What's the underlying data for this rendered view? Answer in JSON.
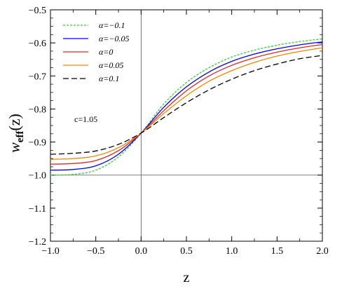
{
  "chart_data": {
    "type": "line",
    "title": "",
    "xlabel": "z",
    "ylabel_main": "w",
    "ylabel_sub": "eff",
    "ylabel_arg": "(z)",
    "xlim": [
      -1.0,
      2.0
    ],
    "ylim": [
      -1.2,
      -0.5
    ],
    "x_ticks": [
      -1.0,
      -0.5,
      0.0,
      0.5,
      1.0,
      1.5,
      2.0
    ],
    "x_tick_labels": [
      "−1.0",
      "−0.5",
      "0.0",
      "0.5",
      "1.0",
      "1.5",
      "2.0"
    ],
    "y_ticks": [
      -1.2,
      -1.1,
      -1.0,
      -0.9,
      -0.8,
      -0.7,
      -0.6,
      -0.5
    ],
    "y_tick_labels": [
      "−1.2",
      "−1.1",
      "−1.0",
      "−0.9",
      "−0.8",
      "−0.7",
      "−0.6",
      "−0.5"
    ],
    "reference_lines": {
      "x": 0.0,
      "y": -1.0
    },
    "annotation": "c=1.05",
    "legend_position": "top-left",
    "grid": false,
    "x": [
      -1.0,
      -0.75,
      -0.5,
      -0.25,
      0.0,
      0.25,
      0.5,
      0.75,
      1.0,
      1.25,
      1.5,
      1.75,
      2.0
    ],
    "series": [
      {
        "name": "α=−0.1",
        "color": "#33cc33",
        "dash": "dotted",
        "values": [
          -1.0,
          -0.998,
          -0.985,
          -0.945,
          -0.873,
          -0.785,
          -0.72,
          -0.675,
          -0.643,
          -0.622,
          -0.607,
          -0.596,
          -0.588
        ]
      },
      {
        "name": "α=−0.05",
        "color": "#0000ff",
        "dash": "solid",
        "values": [
          -0.985,
          -0.983,
          -0.972,
          -0.937,
          -0.873,
          -0.795,
          -0.733,
          -0.688,
          -0.656,
          -0.634,
          -0.618,
          -0.606,
          -0.597
        ]
      },
      {
        "name": "α=0",
        "color": "#ee2222",
        "dash": "solid",
        "values": [
          -0.967,
          -0.965,
          -0.956,
          -0.926,
          -0.873,
          -0.805,
          -0.745,
          -0.7,
          -0.668,
          -0.645,
          -0.628,
          -0.615,
          -0.605
        ]
      },
      {
        "name": "α=0.05",
        "color": "#ee8800",
        "dash": "solid",
        "values": [
          -0.952,
          -0.95,
          -0.942,
          -0.917,
          -0.873,
          -0.814,
          -0.76,
          -0.716,
          -0.684,
          -0.659,
          -0.64,
          -0.626,
          -0.615
        ]
      },
      {
        "name": "α=0.1",
        "color": "#000000",
        "dash": "dashed",
        "values": [
          -0.937,
          -0.934,
          -0.927,
          -0.907,
          -0.873,
          -0.826,
          -0.781,
          -0.742,
          -0.71,
          -0.684,
          -0.664,
          -0.648,
          -0.638
        ]
      }
    ]
  }
}
